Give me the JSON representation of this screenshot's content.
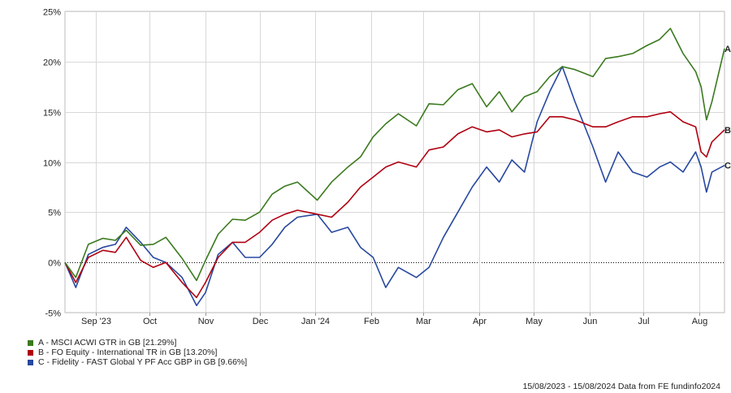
{
  "chart_data": {
    "type": "line",
    "title": "",
    "xlabel": "",
    "ylabel": "",
    "ylim": [
      -5,
      25
    ],
    "yticks": [
      "25%",
      "20%",
      "15%",
      "10%",
      "5%",
      "0%",
      "-5%"
    ],
    "ytick_values": [
      25,
      20,
      15,
      10,
      5,
      0,
      -5
    ],
    "xlim": [
      "2023-08-15",
      "2024-08-15"
    ],
    "xticks": [
      {
        "label": "Sep '23",
        "date": "2023-09-01"
      },
      {
        "label": "Oct",
        "date": "2023-10-01"
      },
      {
        "label": "Nov",
        "date": "2023-11-01"
      },
      {
        "label": "Dec",
        "date": "2023-12-01"
      },
      {
        "label": "Jan '24",
        "date": "2024-01-01"
      },
      {
        "label": "Feb",
        "date": "2024-02-01"
      },
      {
        "label": "Mar",
        "date": "2024-03-01"
      },
      {
        "label": "Apr",
        "date": "2024-04-01"
      },
      {
        "label": "May",
        "date": "2024-05-01"
      },
      {
        "label": "Jun",
        "date": "2024-06-01"
      },
      {
        "label": "Jul",
        "date": "2024-07-01"
      },
      {
        "label": "Aug",
        "date": "2024-08-01"
      }
    ],
    "grid": true,
    "zero_line": "dotted",
    "legend_position": "bottom-left",
    "series": [
      {
        "name": "A - MSCI ACWI GTR in GB [21.29%]",
        "end_label": "A",
        "color": "#3a7a1e",
        "x": [
          "2023-08-15",
          "2023-08-21",
          "2023-08-28",
          "2023-09-05",
          "2023-09-12",
          "2023-09-18",
          "2023-09-26",
          "2023-10-03",
          "2023-10-10",
          "2023-10-19",
          "2023-10-27",
          "2023-11-01",
          "2023-11-08",
          "2023-11-16",
          "2023-11-23",
          "2023-12-01",
          "2023-12-08",
          "2023-12-15",
          "2023-12-22",
          "2024-01-02",
          "2024-01-10",
          "2024-01-19",
          "2024-01-26",
          "2024-02-02",
          "2024-02-09",
          "2024-02-16",
          "2024-02-26",
          "2024-03-04",
          "2024-03-12",
          "2024-03-20",
          "2024-03-28",
          "2024-04-05",
          "2024-04-12",
          "2024-04-19",
          "2024-04-26",
          "2024-05-03",
          "2024-05-10",
          "2024-05-17",
          "2024-05-24",
          "2024-06-03",
          "2024-06-10",
          "2024-06-17",
          "2024-06-25",
          "2024-07-03",
          "2024-07-10",
          "2024-07-16",
          "2024-07-23",
          "2024-07-30",
          "2024-08-02",
          "2024-08-05",
          "2024-08-08",
          "2024-08-15"
        ],
        "values": [
          0.0,
          -1.5,
          1.8,
          2.4,
          2.2,
          3.2,
          1.7,
          1.8,
          2.5,
          0.4,
          -1.8,
          0.2,
          2.8,
          4.3,
          4.2,
          5.0,
          6.8,
          7.6,
          8.0,
          6.2,
          8.0,
          9.5,
          10.5,
          12.5,
          13.8,
          14.8,
          13.6,
          15.8,
          15.7,
          17.2,
          17.8,
          15.5,
          17.0,
          15.0,
          16.5,
          17.0,
          18.5,
          19.5,
          19.2,
          18.5,
          20.3,
          20.5,
          20.8,
          21.6,
          22.2,
          23.3,
          20.8,
          19.0,
          17.5,
          14.2,
          16.0,
          21.3
        ]
      },
      {
        "name": "B - FO Equity - International TR in GB [13.20%]",
        "end_label": "B",
        "color": "#b00010",
        "x": [
          "2023-08-15",
          "2023-08-21",
          "2023-08-28",
          "2023-09-05",
          "2023-09-12",
          "2023-09-18",
          "2023-09-26",
          "2023-10-03",
          "2023-10-10",
          "2023-10-19",
          "2023-10-27",
          "2023-11-01",
          "2023-11-08",
          "2023-11-16",
          "2023-11-23",
          "2023-12-01",
          "2023-12-08",
          "2023-12-15",
          "2023-12-22",
          "2024-01-02",
          "2024-01-10",
          "2024-01-19",
          "2024-01-26",
          "2024-02-02",
          "2024-02-09",
          "2024-02-16",
          "2024-02-26",
          "2024-03-04",
          "2024-03-12",
          "2024-03-20",
          "2024-03-28",
          "2024-04-05",
          "2024-04-12",
          "2024-04-19",
          "2024-04-26",
          "2024-05-03",
          "2024-05-10",
          "2024-05-17",
          "2024-05-24",
          "2024-06-03",
          "2024-06-10",
          "2024-06-17",
          "2024-06-25",
          "2024-07-03",
          "2024-07-10",
          "2024-07-16",
          "2024-07-23",
          "2024-07-30",
          "2024-08-02",
          "2024-08-05",
          "2024-08-08",
          "2024-08-15"
        ],
        "values": [
          0.0,
          -2.0,
          0.5,
          1.2,
          1.0,
          2.5,
          0.2,
          -0.5,
          0.0,
          -2.0,
          -3.5,
          -2.0,
          0.5,
          2.0,
          2.0,
          3.0,
          4.2,
          4.8,
          5.2,
          4.8,
          4.5,
          6.0,
          7.5,
          8.5,
          9.5,
          10.0,
          9.5,
          11.2,
          11.5,
          12.8,
          13.5,
          13.0,
          13.2,
          12.5,
          12.8,
          13.0,
          14.5,
          14.5,
          14.2,
          13.5,
          13.5,
          14.0,
          14.5,
          14.5,
          14.8,
          15.0,
          14.0,
          13.5,
          11.0,
          10.5,
          12.0,
          13.2
        ]
      },
      {
        "name": "C - Fidelity - FAST Global Y PF Acc GBP in GB [9.66%]",
        "end_label": "C",
        "color": "#2748a0",
        "x": [
          "2023-08-15",
          "2023-08-21",
          "2023-08-28",
          "2023-09-05",
          "2023-09-12",
          "2023-09-18",
          "2023-09-26",
          "2023-10-03",
          "2023-10-10",
          "2023-10-19",
          "2023-10-27",
          "2023-11-01",
          "2023-11-08",
          "2023-11-16",
          "2023-11-23",
          "2023-12-01",
          "2023-12-08",
          "2023-12-15",
          "2023-12-22",
          "2024-01-02",
          "2024-01-10",
          "2024-01-19",
          "2024-01-26",
          "2024-02-02",
          "2024-02-09",
          "2024-02-16",
          "2024-02-26",
          "2024-03-04",
          "2024-03-12",
          "2024-03-20",
          "2024-03-28",
          "2024-04-05",
          "2024-04-12",
          "2024-04-19",
          "2024-04-26",
          "2024-05-03",
          "2024-05-10",
          "2024-05-17",
          "2024-05-24",
          "2024-06-03",
          "2024-06-10",
          "2024-06-17",
          "2024-06-25",
          "2024-07-03",
          "2024-07-10",
          "2024-07-16",
          "2024-07-23",
          "2024-07-30",
          "2024-08-02",
          "2024-08-05",
          "2024-08-08",
          "2024-08-15"
        ],
        "values": [
          0.0,
          -2.5,
          0.8,
          1.5,
          1.8,
          3.5,
          2.0,
          0.5,
          0.0,
          -1.5,
          -4.3,
          -3.0,
          0.8,
          2.0,
          0.5,
          0.5,
          1.8,
          3.5,
          4.5,
          4.8,
          3.0,
          3.5,
          1.5,
          0.5,
          -2.5,
          -0.5,
          -1.5,
          -0.5,
          2.5,
          5.0,
          7.5,
          9.5,
          8.0,
          10.2,
          9.0,
          14.0,
          17.0,
          19.5,
          16.0,
          11.5,
          8.0,
          11.0,
          9.0,
          8.5,
          9.5,
          10.0,
          9.0,
          11.0,
          9.5,
          7.0,
          9.0,
          9.66
        ]
      }
    ]
  },
  "footer": {
    "text": "15/08/2023 - 15/08/2024 Data from FE fundinfo2024"
  }
}
